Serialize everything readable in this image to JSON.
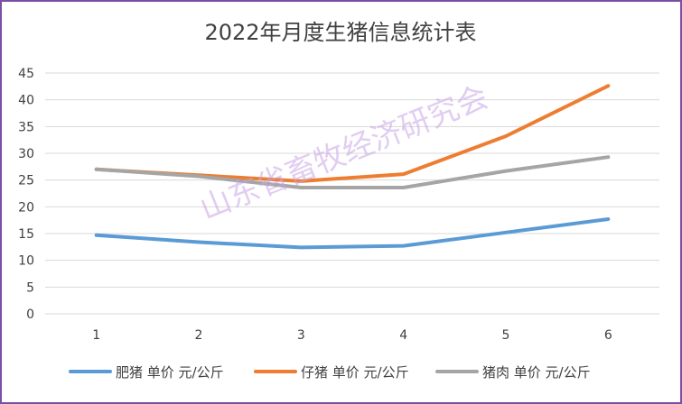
{
  "chart_data": {
    "type": "line",
    "title": "2022年月度生猪信息统计表",
    "watermark": "山东省畜牧经济研究会",
    "x": [
      1,
      2,
      3,
      4,
      5,
      6
    ],
    "x_tick_labels": [
      "1",
      "2",
      "3",
      "4",
      "5",
      "6"
    ],
    "ylim": [
      0,
      45
    ],
    "y_ticks": [
      0,
      5,
      10,
      15,
      20,
      25,
      30,
      35,
      40,
      45
    ],
    "y_tick_labels": [
      "0",
      "5",
      "10",
      "15",
      "20",
      "25",
      "30",
      "35",
      "40",
      "45"
    ],
    "grid": true,
    "legend_position": "bottom",
    "series": [
      {
        "name": "肥猪 单价 元/公斤",
        "color": "#5b9bd5",
        "values": [
          14.7,
          13.4,
          12.4,
          12.7,
          15.2,
          17.7
        ]
      },
      {
        "name": "仔猪 单价 元/公斤",
        "color": "#ed7d31",
        "values": [
          27.0,
          25.9,
          24.8,
          26.1,
          33.2,
          42.6
        ]
      },
      {
        "name": "猪肉 单价 元/公斤",
        "color": "#a5a5a5",
        "values": [
          27.0,
          25.7,
          23.6,
          23.6,
          26.7,
          29.3
        ]
      }
    ]
  }
}
